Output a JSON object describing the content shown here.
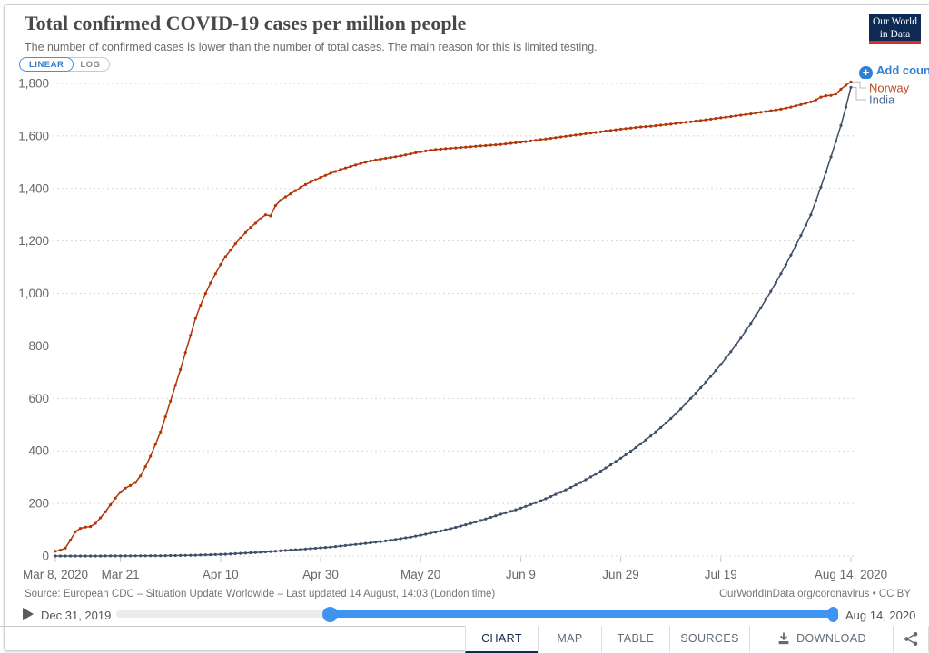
{
  "header": {
    "title": "Total confirmed COVID-19 cases per million people",
    "subtitle": "The number of confirmed cases is lower than the number of total cases. The main reason for this is limited testing.",
    "scale_toggle": {
      "linear_label": "LINEAR",
      "log_label": "LOG",
      "active": "LINEAR"
    },
    "logo": {
      "line1": "Our World",
      "line2": "in Data"
    },
    "add_country_label": "Add country"
  },
  "chart_data": {
    "type": "line",
    "title": "Total confirmed COVID-19 cases per million people",
    "xlabel": "",
    "ylabel": "",
    "ylim": [
      0,
      1800
    ],
    "y_ticks": [
      0,
      200,
      400,
      600,
      800,
      1000,
      1200,
      1400,
      1600,
      1800
    ],
    "y_tick_labels": [
      "0",
      "200",
      "400",
      "600",
      "800",
      "1,000",
      "1,200",
      "1,400",
      "1,600",
      "1,800"
    ],
    "x_range_days": [
      0,
      159
    ],
    "x_tick_days": [
      0,
      13,
      33,
      53,
      73,
      93,
      113,
      133,
      159
    ],
    "x_tick_labels": [
      "Mar 8, 2020",
      "Mar 21",
      "Apr 10",
      "Apr 30",
      "May 20",
      "Jun 9",
      "Jun 29",
      "Jul 19",
      "Aug 14, 2020"
    ],
    "grid": "dashed-horizontal",
    "legend_position": "right-of-line-ends",
    "series": [
      {
        "name": "Norway",
        "color": "#b13507",
        "label_color": "#bf4b22",
        "points": [
          [
            0,
            18
          ],
          [
            1,
            22
          ],
          [
            2,
            30
          ],
          [
            3,
            60
          ],
          [
            4,
            92
          ],
          [
            5,
            105
          ],
          [
            6,
            110
          ],
          [
            7,
            112
          ],
          [
            8,
            124
          ],
          [
            9,
            145
          ],
          [
            10,
            168
          ],
          [
            11,
            195
          ],
          [
            12,
            220
          ],
          [
            13,
            243
          ],
          [
            14,
            258
          ],
          [
            15,
            268
          ],
          [
            16,
            280
          ],
          [
            17,
            305
          ],
          [
            18,
            340
          ],
          [
            19,
            380
          ],
          [
            20,
            425
          ],
          [
            21,
            472
          ],
          [
            22,
            530
          ],
          [
            23,
            590
          ],
          [
            24,
            650
          ],
          [
            25,
            710
          ],
          [
            26,
            775
          ],
          [
            27,
            840
          ],
          [
            28,
            905
          ],
          [
            29,
            955
          ],
          [
            30,
            1000
          ],
          [
            31,
            1040
          ],
          [
            32,
            1075
          ],
          [
            33,
            1110
          ],
          [
            34,
            1140
          ],
          [
            35,
            1165
          ],
          [
            36,
            1190
          ],
          [
            37,
            1212
          ],
          [
            38,
            1232
          ],
          [
            39,
            1252
          ],
          [
            40,
            1268
          ],
          [
            41,
            1285
          ],
          [
            42,
            1300
          ],
          [
            43,
            1296
          ],
          [
            44,
            1335
          ],
          [
            45,
            1355
          ],
          [
            46,
            1368
          ],
          [
            47,
            1380
          ],
          [
            48,
            1392
          ],
          [
            49,
            1404
          ],
          [
            50,
            1415
          ],
          [
            51,
            1424
          ],
          [
            52,
            1433
          ],
          [
            53,
            1442
          ],
          [
            55,
            1458
          ],
          [
            57,
            1472
          ],
          [
            59,
            1484
          ],
          [
            61,
            1495
          ],
          [
            63,
            1505
          ],
          [
            65,
            1512
          ],
          [
            67,
            1518
          ],
          [
            69,
            1524
          ],
          [
            71,
            1532
          ],
          [
            73,
            1540
          ],
          [
            75,
            1546
          ],
          [
            77,
            1550
          ],
          [
            79,
            1553
          ],
          [
            81,
            1556
          ],
          [
            83,
            1559
          ],
          [
            85,
            1562
          ],
          [
            87,
            1565
          ],
          [
            89,
            1568
          ],
          [
            91,
            1572
          ],
          [
            93,
            1576
          ],
          [
            95,
            1581
          ],
          [
            97,
            1586
          ],
          [
            99,
            1591
          ],
          [
            101,
            1596
          ],
          [
            103,
            1601
          ],
          [
            105,
            1606
          ],
          [
            107,
            1611
          ],
          [
            109,
            1616
          ],
          [
            111,
            1621
          ],
          [
            113,
            1626
          ],
          [
            115,
            1630
          ],
          [
            117,
            1634
          ],
          [
            119,
            1637
          ],
          [
            121,
            1641
          ],
          [
            123,
            1645
          ],
          [
            125,
            1650
          ],
          [
            127,
            1654
          ],
          [
            129,
            1659
          ],
          [
            131,
            1664
          ],
          [
            133,
            1669
          ],
          [
            135,
            1674
          ],
          [
            137,
            1679
          ],
          [
            139,
            1684
          ],
          [
            141,
            1690
          ],
          [
            143,
            1696
          ],
          [
            145,
            1702
          ],
          [
            147,
            1710
          ],
          [
            149,
            1719
          ],
          [
            151,
            1730
          ],
          [
            152,
            1737
          ],
          [
            153,
            1748
          ],
          [
            154,
            1753
          ],
          [
            155,
            1754
          ],
          [
            156,
            1760
          ],
          [
            157,
            1778
          ],
          [
            158,
            1793
          ],
          [
            159,
            1806
          ]
        ]
      },
      {
        "name": "India",
        "color": "#3d4e66",
        "label_color": "#4d6b97",
        "points": [
          [
            0,
            0
          ],
          [
            5,
            0
          ],
          [
            10,
            0.2
          ],
          [
            15,
            0.5
          ],
          [
            20,
            1
          ],
          [
            25,
            2
          ],
          [
            28,
            3
          ],
          [
            31,
            5
          ],
          [
            34,
            7
          ],
          [
            37,
            10
          ],
          [
            40,
            13
          ],
          [
            43,
            17
          ],
          [
            46,
            21
          ],
          [
            49,
            25
          ],
          [
            51,
            28
          ],
          [
            53,
            31
          ],
          [
            55,
            34
          ],
          [
            57,
            38
          ],
          [
            59,
            42
          ],
          [
            61,
            46
          ],
          [
            63,
            50
          ],
          [
            65,
            55
          ],
          [
            67,
            60
          ],
          [
            69,
            66
          ],
          [
            71,
            72
          ],
          [
            73,
            79
          ],
          [
            75,
            87
          ],
          [
            77,
            95
          ],
          [
            79,
            104
          ],
          [
            81,
            114
          ],
          [
            83,
            124
          ],
          [
            85,
            135
          ],
          [
            87,
            147
          ],
          [
            89,
            159
          ],
          [
            91,
            170
          ],
          [
            93,
            182
          ],
          [
            95,
            196
          ],
          [
            97,
            210
          ],
          [
            99,
            226
          ],
          [
            101,
            243
          ],
          [
            103,
            261
          ],
          [
            105,
            280
          ],
          [
            107,
            301
          ],
          [
            109,
            323
          ],
          [
            111,
            347
          ],
          [
            113,
            372
          ],
          [
            115,
            399
          ],
          [
            117,
            427
          ],
          [
            119,
            457
          ],
          [
            121,
            489
          ],
          [
            123,
            523
          ],
          [
            125,
            560
          ],
          [
            127,
            600
          ],
          [
            129,
            641
          ],
          [
            131,
            684
          ],
          [
            133,
            729
          ],
          [
            135,
            778
          ],
          [
            137,
            830
          ],
          [
            139,
            886
          ],
          [
            141,
            945
          ],
          [
            143,
            1008
          ],
          [
            145,
            1075
          ],
          [
            147,
            1146
          ],
          [
            149,
            1221
          ],
          [
            151,
            1300
          ],
          [
            153,
            1405
          ],
          [
            155,
            1520
          ],
          [
            157,
            1640
          ],
          [
            158,
            1710
          ],
          [
            159,
            1785
          ]
        ]
      }
    ]
  },
  "footer": {
    "source": "Source: European CDC – Situation Update Worldwide – Last updated 14 August, 14:03 (London time)",
    "license": "OurWorldInData.org/coronavirus • CC BY",
    "timeline": {
      "start_label": "Dec 31, 2019",
      "end_label": "Aug 14, 2020"
    },
    "tabs": [
      {
        "label": "CHART",
        "active": true
      },
      {
        "label": "MAP",
        "active": false
      },
      {
        "label": "TABLE",
        "active": false
      },
      {
        "label": "SOURCES",
        "active": false
      },
      {
        "label": "DOWNLOAD",
        "active": false,
        "icon": "download-icon"
      }
    ],
    "share_icon": "share-icon"
  }
}
